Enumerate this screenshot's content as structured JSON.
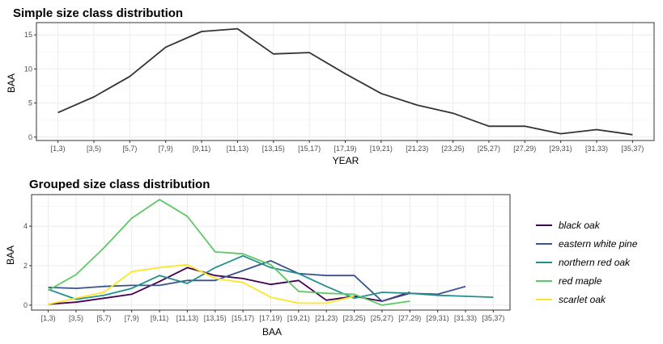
{
  "chart_data": [
    {
      "type": "line",
      "title": "Simple size class distribution",
      "xlabel": "YEAR",
      "ylabel": "BAA",
      "categories": [
        "[1,3)",
        "[3,5)",
        "[5,7)",
        "[7,9)",
        "[9,11)",
        "[11,13)",
        "[13,15)",
        "[15,17)",
        "[17,19)",
        "[19,21)",
        "[21,23)",
        "[23,25)",
        "[25,27)",
        "[27,29)",
        "[29,31)",
        "[31,33)",
        "[35,37)"
      ],
      "yticks": [
        0,
        5,
        10,
        15
      ],
      "ylim": [
        -0.5,
        16.8
      ],
      "grid": true,
      "series": [
        {
          "color": "#333333",
          "values": [
            3.6,
            5.9,
            8.9,
            13.2,
            15.5,
            15.9,
            12.2,
            12.4,
            9.3,
            6.4,
            4.7,
            3.5,
            1.6,
            1.6,
            0.5,
            1.1,
            0.35
          ]
        }
      ]
    },
    {
      "type": "line",
      "title": "Grouped size class distribution",
      "xlabel": "BAA",
      "ylabel": "BAA",
      "categories": [
        "[1,3)",
        "[3,5)",
        "[5,7)",
        "[7,9)",
        "[9,11)",
        "[11,13)",
        "[13,15)",
        "[15,17)",
        "[17,19)",
        "[19,21)",
        "[21,23)",
        "[23,25)",
        "[25,27)",
        "[27,29)",
        "[29,31)",
        "[31,33)",
        "[35,37)"
      ],
      "yticks": [
        0,
        2,
        4
      ],
      "ylim": [
        -0.25,
        5.6
      ],
      "grid": true,
      "legend_position": "right",
      "series": [
        {
          "name": "black oak",
          "color": "#440154",
          "values": [
            0.05,
            0.15,
            0.35,
            0.55,
            1.2,
            1.9,
            1.5,
            1.35,
            1.05,
            1.25,
            0.25,
            0.45,
            0.2,
            0.65,
            null,
            null,
            null
          ]
        },
        {
          "name": "eastern white pine",
          "color": "#3B528B",
          "values": [
            0.9,
            0.85,
            0.95,
            1.0,
            1.0,
            1.25,
            1.25,
            1.75,
            2.25,
            1.6,
            1.5,
            1.5,
            0.2,
            0.6,
            0.55,
            0.95,
            null
          ]
        },
        {
          "name": "northern red oak",
          "color": "#21908C",
          "values": [
            0.8,
            0.3,
            0.5,
            0.85,
            1.5,
            1.1,
            1.9,
            2.5,
            1.9,
            1.6,
            0.95,
            0.35,
            0.65,
            0.6,
            0.5,
            0.45,
            0.4
          ]
        },
        {
          "name": "red maple",
          "color": "#5DC863",
          "values": [
            0.75,
            1.55,
            2.9,
            4.4,
            5.35,
            4.5,
            2.7,
            2.6,
            2.05,
            0.7,
            0.6,
            0.55,
            0.0,
            0.2,
            null,
            null,
            null
          ]
        },
        {
          "name": "scarlet oak",
          "color": "#FDE725",
          "values": [
            0.05,
            0.35,
            0.65,
            1.7,
            1.9,
            2.05,
            1.35,
            1.15,
            0.4,
            0.1,
            0.1,
            0.45,
            null,
            null,
            null,
            null,
            null
          ]
        }
      ]
    }
  ]
}
